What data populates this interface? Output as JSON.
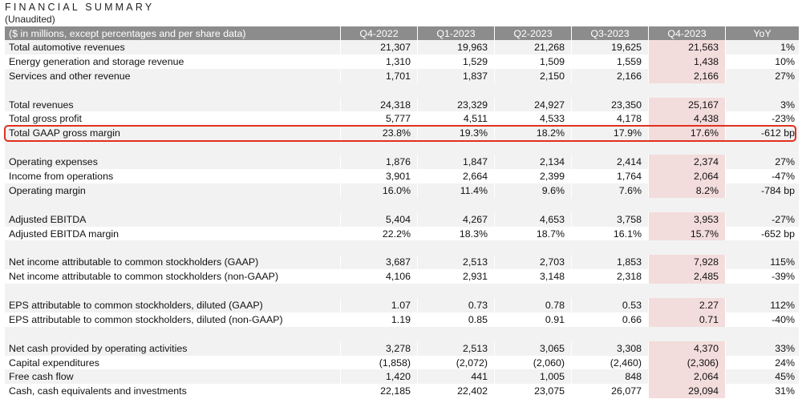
{
  "title": "FINANCIAL SUMMARY",
  "subtitle": "(Unaudited)",
  "header": {
    "label": "($ in millions, except percentages and per share data)",
    "columns": [
      "Q4-2022",
      "Q1-2023",
      "Q2-2023",
      "Q3-2023",
      "Q4-2023",
      "YoY"
    ]
  },
  "groups": [
    [
      {
        "label": "Total automotive revenues",
        "values": [
          "21,307",
          "19,963",
          "21,268",
          "19,625",
          "21,563",
          "1%"
        ]
      },
      {
        "label": "Energy generation and storage revenue",
        "values": [
          "1,310",
          "1,529",
          "1,509",
          "1,559",
          "1,438",
          "10%"
        ]
      },
      {
        "label": "Services and other revenue",
        "values": [
          "1,701",
          "1,837",
          "2,150",
          "2,166",
          "2,166",
          "27%"
        ]
      }
    ],
    [
      {
        "label": "Total revenues",
        "values": [
          "24,318",
          "23,329",
          "24,927",
          "23,350",
          "25,167",
          "3%"
        ]
      },
      {
        "label": "Total gross profit",
        "values": [
          "5,777",
          "4,511",
          "4,533",
          "4,178",
          "4,438",
          "-23%"
        ]
      },
      {
        "label": "Total GAAP gross margin",
        "values": [
          "23.8%",
          "19.3%",
          "18.2%",
          "17.9%",
          "17.6%",
          "-612 bp"
        ]
      }
    ],
    [
      {
        "label": "Operating expenses",
        "values": [
          "1,876",
          "1,847",
          "2,134",
          "2,414",
          "2,374",
          "27%"
        ]
      },
      {
        "label": "Income from operations",
        "values": [
          "3,901",
          "2,664",
          "2,399",
          "1,764",
          "2,064",
          "-47%"
        ]
      },
      {
        "label": "Operating margin",
        "values": [
          "16.0%",
          "11.4%",
          "9.6%",
          "7.6%",
          "8.2%",
          "-784 bp"
        ]
      }
    ],
    [
      {
        "label": "Adjusted EBITDA",
        "values": [
          "5,404",
          "4,267",
          "4,653",
          "3,758",
          "3,953",
          "-27%"
        ]
      },
      {
        "label": "Adjusted EBITDA margin",
        "values": [
          "22.2%",
          "18.3%",
          "18.7%",
          "16.1%",
          "15.7%",
          "-652 bp"
        ]
      }
    ],
    [
      {
        "label": "Net income attributable to common stockholders (GAAP)",
        "values": [
          "3,687",
          "2,513",
          "2,703",
          "1,853",
          "7,928",
          "115%"
        ]
      },
      {
        "label": "Net income attributable to common stockholders (non-GAAP)",
        "values": [
          "4,106",
          "2,931",
          "3,148",
          "2,318",
          "2,485",
          "-39%"
        ]
      }
    ],
    [
      {
        "label": "EPS attributable to common stockholders, diluted (GAAP)",
        "values": [
          "1.07",
          "0.73",
          "0.78",
          "0.53",
          "2.27",
          "112%"
        ]
      },
      {
        "label": "EPS attributable to common stockholders, diluted (non-GAAP)",
        "values": [
          "1.19",
          "0.85",
          "0.91",
          "0.66",
          "0.71",
          "-40%"
        ]
      }
    ],
    [
      {
        "label": "Net cash provided by operating activities",
        "values": [
          "3,278",
          "2,513",
          "3,065",
          "3,308",
          "4,370",
          "33%"
        ]
      },
      {
        "label": "Capital expenditures",
        "values": [
          "(1,858)",
          "(2,072)",
          "(2,060)",
          "(2,460)",
          "(2,306)",
          "24%"
        ]
      },
      {
        "label": "Free cash flow",
        "values": [
          "1,420",
          "441",
          "1,005",
          "848",
          "2,064",
          "45%"
        ]
      },
      {
        "label": "Cash, cash equivalents and investments",
        "values": [
          "22,185",
          "22,402",
          "23,075",
          "26,077",
          "29,094",
          "31%"
        ]
      }
    ]
  ],
  "colors": {
    "header_bg": "#8c8c8c",
    "row_shade": "#f2f2f2",
    "current_quarter_highlight": "#f3dcdc",
    "outline_red": "#e0311e"
  }
}
